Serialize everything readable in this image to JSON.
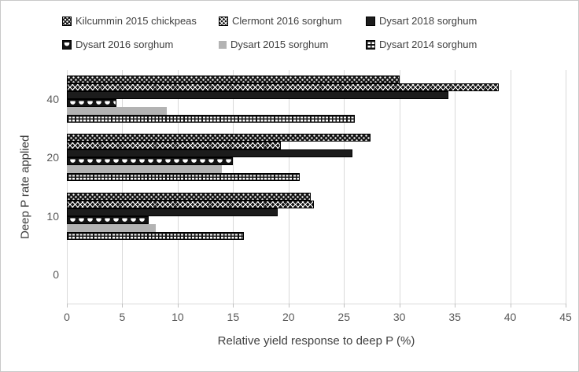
{
  "frame": {
    "background": "#ffffff",
    "border_color": "#c9c9c9"
  },
  "colors": {
    "bar_black": "#1c1c1c",
    "bar_gray": "#b3b3b3",
    "gridline": "#d9d9d9",
    "axis_text": "#595959",
    "title_text": "#3f3f3f",
    "legend_text": "#404040"
  },
  "chart_data": {
    "type": "bar",
    "orientation": "horizontal",
    "title": "",
    "xlabel": "Relative yield response to deep P (%)",
    "ylabel": "Deep P rate applied",
    "categories": [
      "40",
      "20",
      "10",
      "0"
    ],
    "x_ticks": [
      0,
      5,
      10,
      15,
      20,
      25,
      30,
      35,
      40,
      45
    ],
    "xlim": [
      0,
      45
    ],
    "grid": "vertical-only",
    "legend_position": "top",
    "legend_rows": 2,
    "series": [
      {
        "name": "Kilcummin 2015 chickpeas",
        "pattern": "dotgrid",
        "values": [
          30,
          27.4,
          22,
          0
        ]
      },
      {
        "name": "Clermont 2016 sorghum",
        "pattern": "diamond",
        "values": [
          39,
          19.3,
          22.3,
          0
        ]
      },
      {
        "name": "Dysart 2018 sorghum",
        "pattern": "solid-black",
        "values": [
          34.4,
          25.8,
          19,
          0
        ]
      },
      {
        "name": "Dysart 2016 sorghum",
        "pattern": "shingle",
        "values": [
          4.5,
          15,
          7.4,
          0
        ]
      },
      {
        "name": "Dysart 2015 sorghum",
        "pattern": "solid-gray",
        "values": [
          9,
          14,
          8,
          0
        ]
      },
      {
        "name": "Dysart 2014 sorghum",
        "pattern": "ladder",
        "values": [
          26,
          21,
          16,
          0
        ]
      }
    ]
  }
}
